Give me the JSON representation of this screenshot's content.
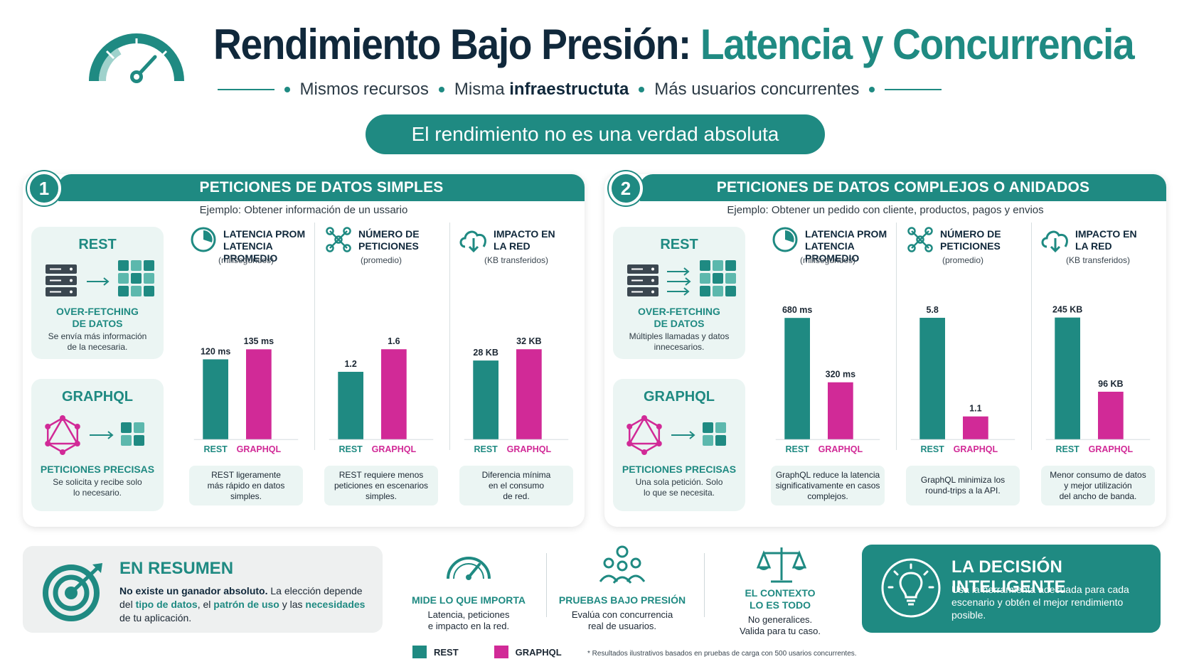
{
  "header": {
    "title_main": "Rendimiento Bajo Presión:",
    "title_highlight": "Latencia y Concurrencia",
    "sub_a": "Mismos recursos",
    "sub_b1": "Misma",
    "sub_b2": "infraestructuta",
    "sub_c": "Más usuarios concurrentes",
    "pill": "El rendimiento no es una verdad absoluta"
  },
  "colors": {
    "rest": "#1f8a82",
    "graphql": "#d12a97"
  },
  "panels": [
    {
      "number": "1",
      "title": "PETICIONES DE DATOS SIMPLES",
      "example": "Ejemplo: Obtener información de un ussario",
      "rest_card": {
        "title": "REST",
        "label1": "OVER-FETCHING",
        "label2": "DE DATOS",
        "desc1": "Se envía más información",
        "desc2": "de la necesaria."
      },
      "gql_card": {
        "title": "GRAPHQL",
        "label": "PETICIONES PRECISAS",
        "desc1": "Se solicita y recibe solo",
        "desc2": "lo necesario."
      },
      "metrics": [
        {
          "t1": "LATENCIA PROM",
          "t2": "LATENCIA PROMEDIO",
          "sub": "(milisegundos)",
          "caption1": "REST ligeramente",
          "caption2": "más rápido en datos simples.",
          "caption3": ""
        },
        {
          "t1": "NÚMERO DE",
          "t2": "PETICIONES",
          "sub": "(promedio)",
          "caption1": "REST requiere menos",
          "caption2": "peticiones en escenarios",
          "caption3": "simples."
        },
        {
          "t1": "IMPACTO EN",
          "t2": "LA RED",
          "sub": "(KB transferidos)",
          "caption1": "Diferencia mínima",
          "caption2": "en el consumo",
          "caption3": "de red."
        }
      ]
    },
    {
      "number": "2",
      "title": "PETICIONES DE DATOS COMPLEJOS O ANIDADOS",
      "example": "Ejemplo: Obtener un pedido con cliente, productos, pagos y envios",
      "rest_card": {
        "title": "REST",
        "label1": "OVER-FETCHING",
        "label2": "DE DATOS",
        "desc1": "Múltiples llamadas y datos",
        "desc2": "innecesarios."
      },
      "gql_card": {
        "title": "GRAPHQL",
        "label": "PETICIONES PRECISAS",
        "desc1": "Una sola petición. Solo",
        "desc2": "lo que se necesita."
      },
      "metrics": [
        {
          "t1": "LATENCIA PROM",
          "t2": "LATENCIA PROMEDIO",
          "sub": "(milisegundos)",
          "caption1": "GraphQL reduce la latencia",
          "caption2": "significativamente en casos",
          "caption3": "complejos."
        },
        {
          "t1": "NÚMERO DE",
          "t2": "PETICIONES",
          "sub": "(promedio)",
          "caption1": "GraphQL minimiza los",
          "caption2": "round-trips a la API.",
          "caption3": ""
        },
        {
          "t1": "IMPACTO EN",
          "t2": "LA RED",
          "sub": "(KB transferidos)",
          "caption1": "Menor consumo de datos",
          "caption2": "y mejor utilización",
          "caption3": "del ancho de banda."
        }
      ]
    }
  ],
  "chart_data": [
    {
      "type": "bar",
      "title": "LATENCIA PROMEDIO",
      "categories": [
        "REST",
        "GRAPHQL"
      ],
      "values": [
        120,
        135
      ],
      "labels": [
        "120 ms",
        "135 ms"
      ],
      "ylim": [
        0,
        190
      ]
    },
    {
      "type": "bar",
      "title": "NÚMERO DE PETICIONES",
      "categories": [
        "REST",
        "GRAPHQL"
      ],
      "values": [
        1.2,
        1.6
      ],
      "labels": [
        "1.2",
        "1.6"
      ],
      "ylim": [
        0,
        2.25
      ]
    },
    {
      "type": "bar",
      "title": "IMPACTO EN LA RED",
      "categories": [
        "REST",
        "GRAPHQL"
      ],
      "values": [
        28,
        32
      ],
      "labels": [
        "28 KB",
        "32 KB"
      ],
      "ylim": [
        0,
        45
      ]
    },
    {
      "type": "bar",
      "title": "LATENCIA PROMEDIO",
      "categories": [
        "REST",
        "GRAPHQL"
      ],
      "values": [
        680,
        320
      ],
      "labels": [
        "680 ms",
        "320 ms"
      ],
      "ylim": [
        0,
        710
      ]
    },
    {
      "type": "bar",
      "title": "NÚMERO DE PETICIONES",
      "categories": [
        "REST",
        "GRAPHQL"
      ],
      "values": [
        5.8,
        1.1
      ],
      "labels": [
        "5.8",
        "1.1"
      ],
      "ylim": [
        0,
        6.05
      ]
    },
    {
      "type": "bar",
      "title": "IMPACTO EN LA RED",
      "categories": [
        "REST",
        "GRAPHQL"
      ],
      "values": [
        245,
        96
      ],
      "labels": [
        "245 KB",
        "96 KB"
      ],
      "ylim": [
        0,
        255
      ]
    }
  ],
  "summary": {
    "title": "EN RESUMEN",
    "bold": "No existe un ganador absoluto.",
    "t1": " La elección depende del ",
    "k1": "tipo de datos",
    "t2": ", el ",
    "k2": "patrón de uso",
    "t3": " y las ",
    "k3": "necesidades",
    "t4": " de tu aplicación."
  },
  "tips": [
    {
      "title1": "MIDE LO QUE IMPORTA",
      "title2": "",
      "desc1": "Latencia, peticiones",
      "desc2": "e impacto en la red.",
      "icon": "gauge-icon"
    },
    {
      "title1": "PRUEBAS BAJO PRESIÓN",
      "title2": "",
      "desc1": "Evalúa con concurrencia",
      "desc2": "real de usuarios.",
      "icon": "users-icon"
    },
    {
      "title1": "EL CONTEXTO",
      "title2": "LO ES TODO",
      "desc1": "No generalices.",
      "desc2": "Valida para tu caso.",
      "icon": "scale-icon"
    }
  ],
  "decision": {
    "title": "LA DECISIÓN INTELIGENTE",
    "text": "Usa la herramienta adecuada para cada escenario y obtén el mejor rendimiento posible."
  },
  "legend": {
    "rest": "REST",
    "graphql": "GRAPHQL"
  },
  "footnote": "* Resultados ilustrativos basados en pruebas de carga con 500 usarios concurrentes."
}
